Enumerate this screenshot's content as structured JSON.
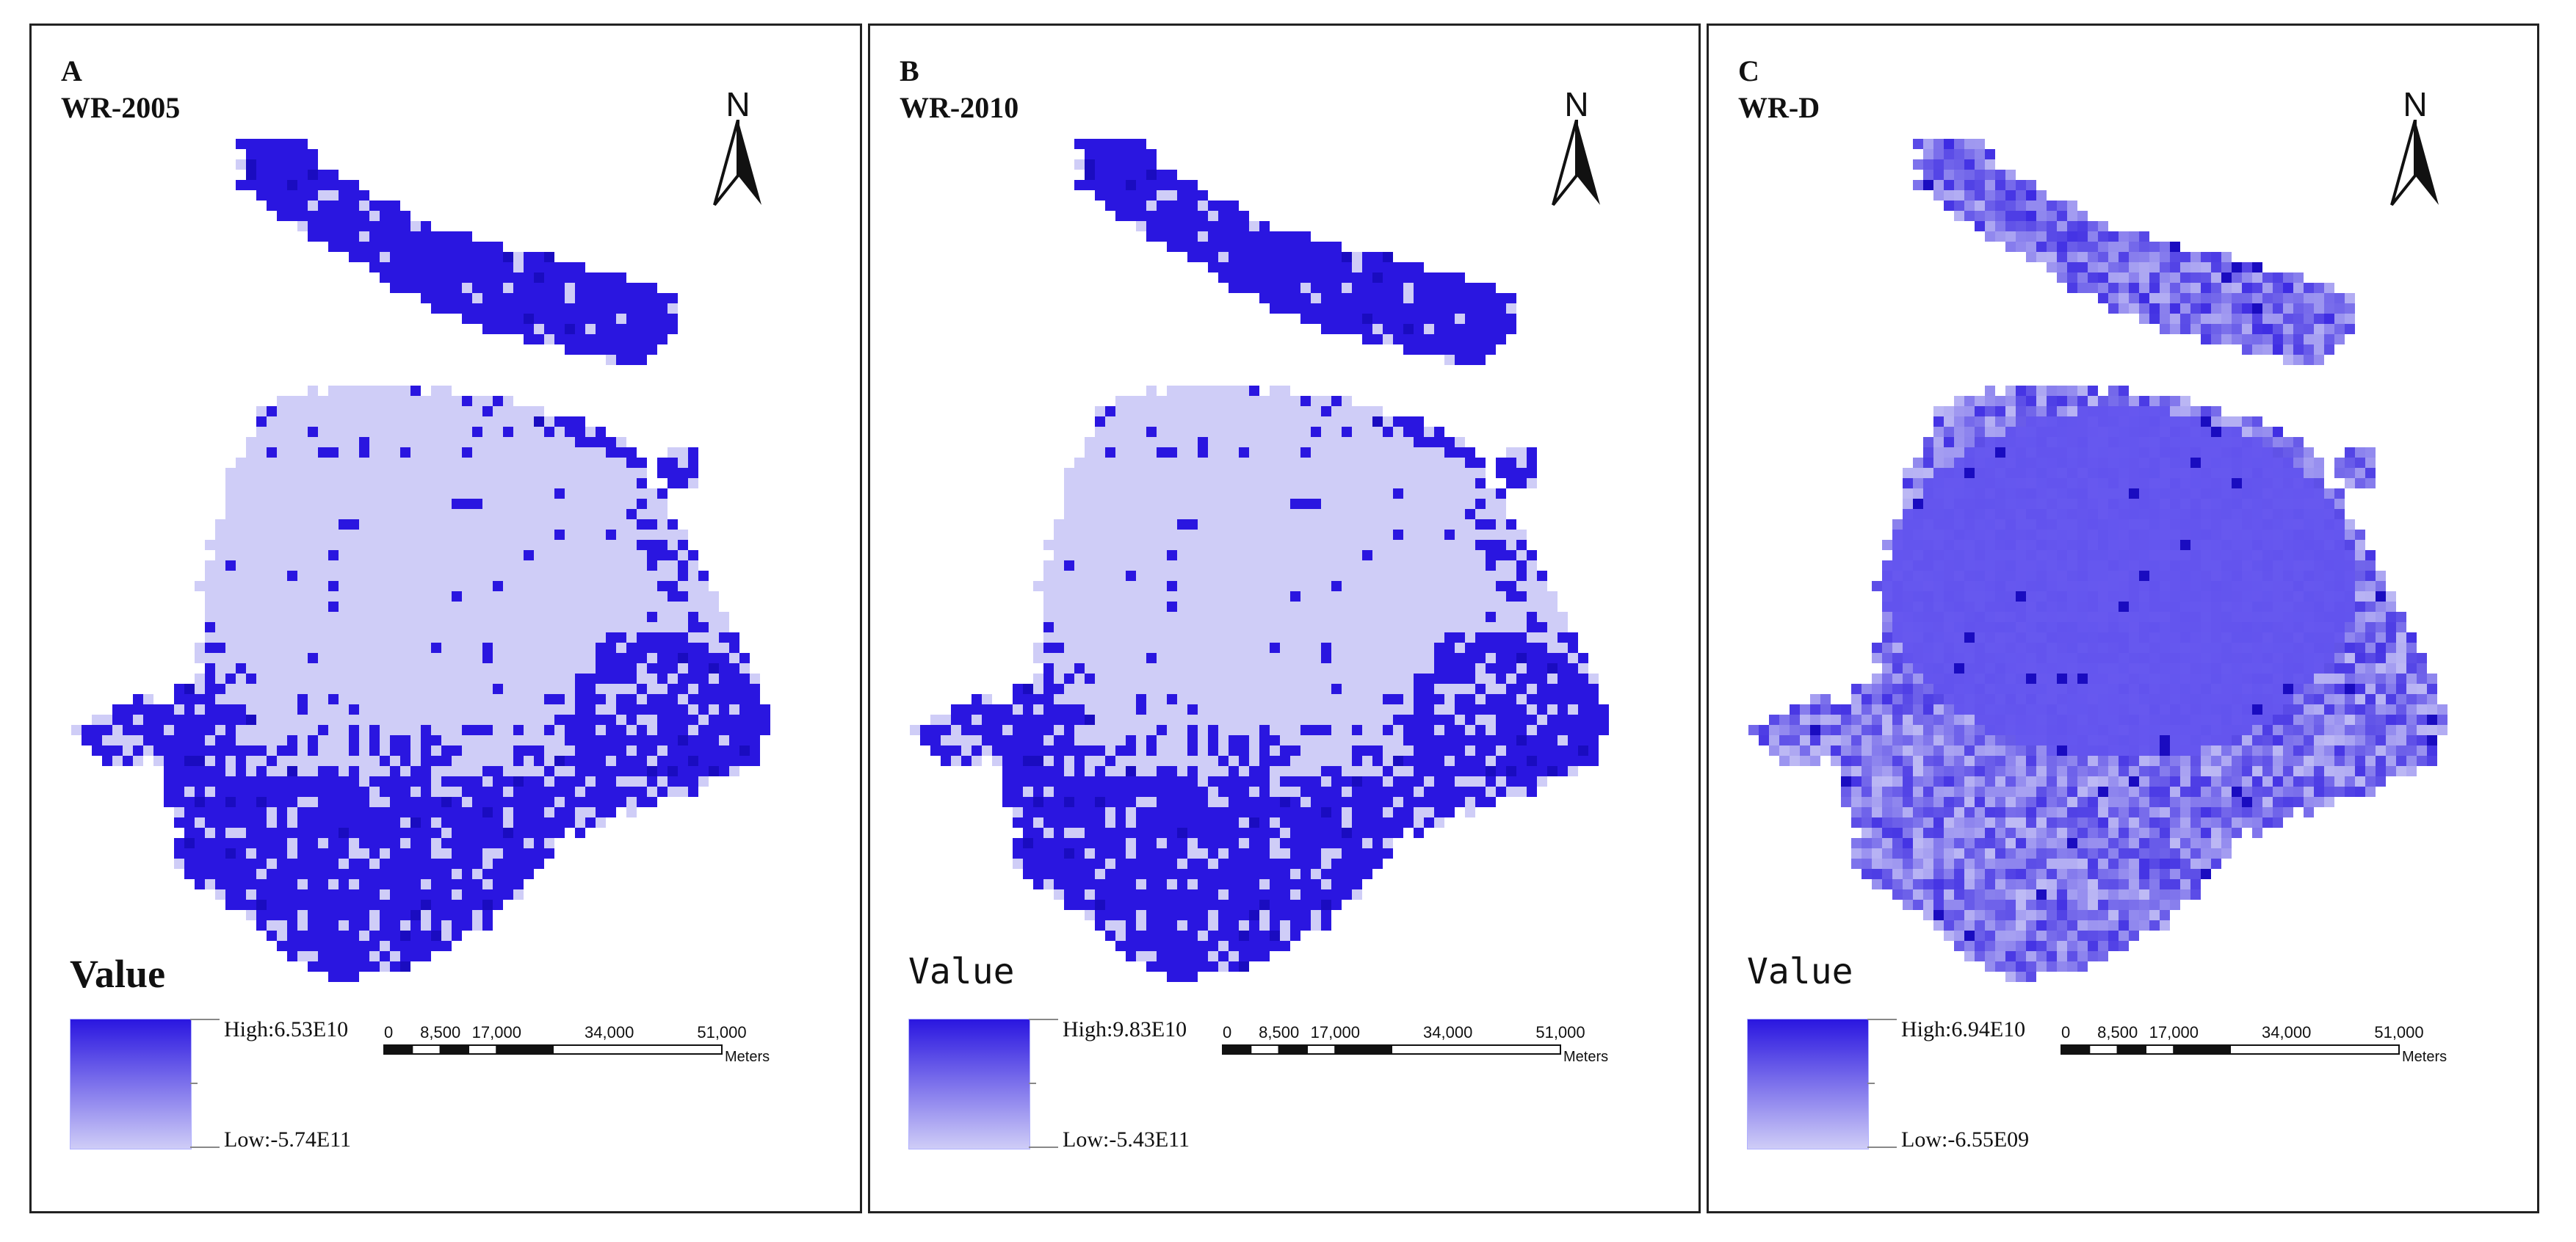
{
  "panels": [
    {
      "letter": "A",
      "title": "WR-2005",
      "north_label": "N",
      "legend_title": "Value",
      "legend_high": "High:6.53E10",
      "legend_low": "Low:-5.74E11",
      "pattern": "binary",
      "scalebar": {
        "ticks": [
          "0",
          "8,500",
          "17,000",
          "34,000",
          "51,000"
        ],
        "unit": "Meters"
      }
    },
    {
      "letter": "B",
      "title": "WR-2010",
      "north_label": "N",
      "legend_title": "Value",
      "legend_high": "High:9.83E10",
      "legend_low": "Low:-5.43E11",
      "pattern": "binary",
      "scalebar": {
        "ticks": [
          "0",
          "8,500",
          "17,000",
          "34,000",
          "51,000"
        ],
        "unit": "Meters"
      }
    },
    {
      "letter": "C",
      "title": "WR-D",
      "north_label": "N",
      "legend_title": "Value",
      "legend_high": "High:6.94E10",
      "legend_low": "Low:-6.55E09",
      "pattern": "mottled",
      "scalebar": {
        "ticks": [
          "0",
          "8,500",
          "17,000",
          "34,000",
          "51,000"
        ],
        "unit": "Meters"
      }
    }
  ],
  "colors": {
    "high": "#2a16e0",
    "low": "#cfcdf7",
    "mid": "#6a5cf0",
    "frame": "#222222"
  }
}
